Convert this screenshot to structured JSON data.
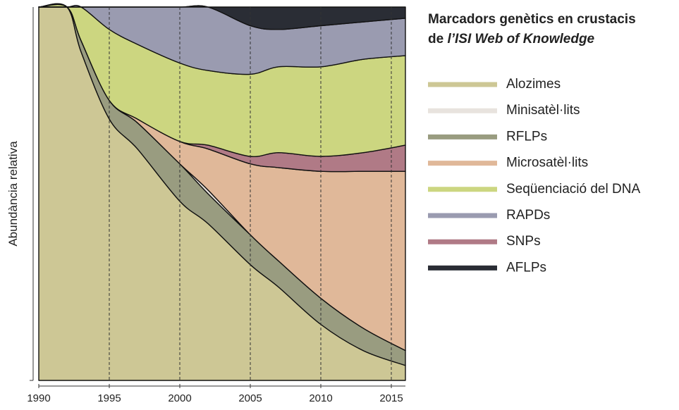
{
  "chart_data": {
    "type": "stacked_area",
    "title": [
      "Marcadors genètics en crustacis",
      "de",
      "l’ISI Web of Knowledge"
    ],
    "ylabel": "Abundància relativa",
    "x": [
      1990,
      1992,
      1993,
      1995,
      1997,
      2000,
      2002,
      2005,
      2007,
      2010,
      2013,
      2016
    ],
    "xlim": [
      1990,
      2016
    ],
    "xticks": [
      1990,
      1995,
      2000,
      2005,
      2010,
      2015
    ],
    "ylim": [
      0,
      100
    ],
    "grid": "x-dashed",
    "stack_order": [
      0,
      2,
      1,
      3,
      6,
      4,
      5,
      7
    ],
    "series": [
      {
        "name": "Alozimes",
        "color": "#cdc795",
        "values": [
          100,
          100,
          88,
          70,
          62,
          48,
          42,
          31,
          25,
          15,
          8,
          4
        ]
      },
      {
        "name": "Minisatèl·lits",
        "color": "#e8e3de",
        "values": [
          0,
          0,
          0,
          0,
          0,
          0,
          1,
          0,
          0,
          0,
          0,
          0
        ]
      },
      {
        "name": "RFLPs",
        "color": "#999c80",
        "values": [
          0,
          0,
          3,
          5,
          7,
          10,
          8,
          8,
          7,
          7,
          6,
          4
        ]
      },
      {
        "name": "Microsatèl·lits",
        "color": "#e0b899",
        "values": [
          0,
          0,
          0,
          0,
          1,
          6,
          11,
          19,
          25,
          34,
          42,
          48
        ]
      },
      {
        "name": "Seqüenciació del DNA",
        "color": "#ccd680",
        "values": [
          0,
          0,
          9,
          19,
          20,
          21,
          20,
          22,
          23,
          24,
          25,
          24
        ]
      },
      {
        "name": "RAPDs",
        "color": "#9a9bb0",
        "values": [
          0,
          0,
          0,
          6,
          10,
          15,
          17,
          13,
          10,
          11,
          10,
          10
        ]
      },
      {
        "name": "SNPs",
        "color": "#b07a86",
        "values": [
          0,
          0,
          0,
          0,
          0,
          0,
          1,
          2,
          4,
          4,
          5,
          7
        ]
      },
      {
        "name": "AFLPs",
        "color": "#2a2d35",
        "values": [
          0,
          0,
          0,
          0,
          0,
          0,
          0,
          5,
          6,
          5,
          4,
          3
        ]
      }
    ]
  }
}
